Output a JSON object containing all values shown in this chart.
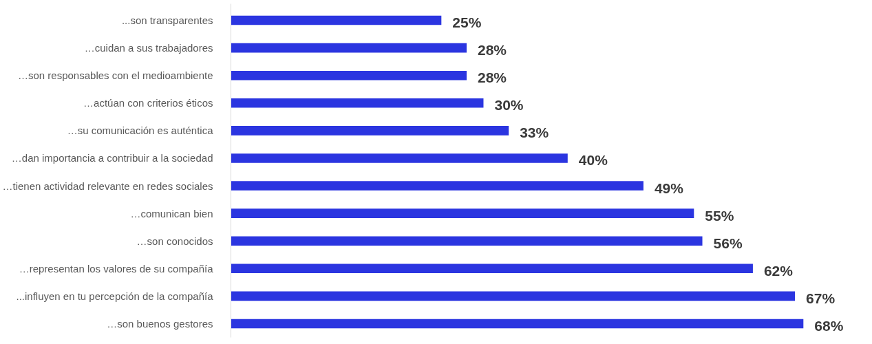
{
  "chart_data": {
    "type": "bar",
    "orientation": "horizontal",
    "categories": [
      "...son transparentes",
      "…cuidan a sus trabajadores",
      "…son responsables con el medioambiente",
      "…actúan con criterios éticos",
      "…su comunicación es auténtica",
      "…dan importancia a contribuir a la sociedad",
      "…tienen actividad relevante en redes sociales",
      "…comunican bien",
      "…son conocidos",
      "…representan los valores de su compañía",
      "...influyen en tu percepción de la compañía",
      "…son buenos gestores"
    ],
    "values": [
      25,
      28,
      28,
      30,
      33,
      40,
      49,
      55,
      56,
      62,
      67,
      68
    ],
    "value_labels": [
      "25%",
      "28%",
      "28%",
      "30%",
      "33%",
      "40%",
      "49%",
      "55%",
      "56%",
      "62%",
      "67%",
      "68%"
    ],
    "color": "#2b35e0",
    "tick_labels": "y"
  }
}
